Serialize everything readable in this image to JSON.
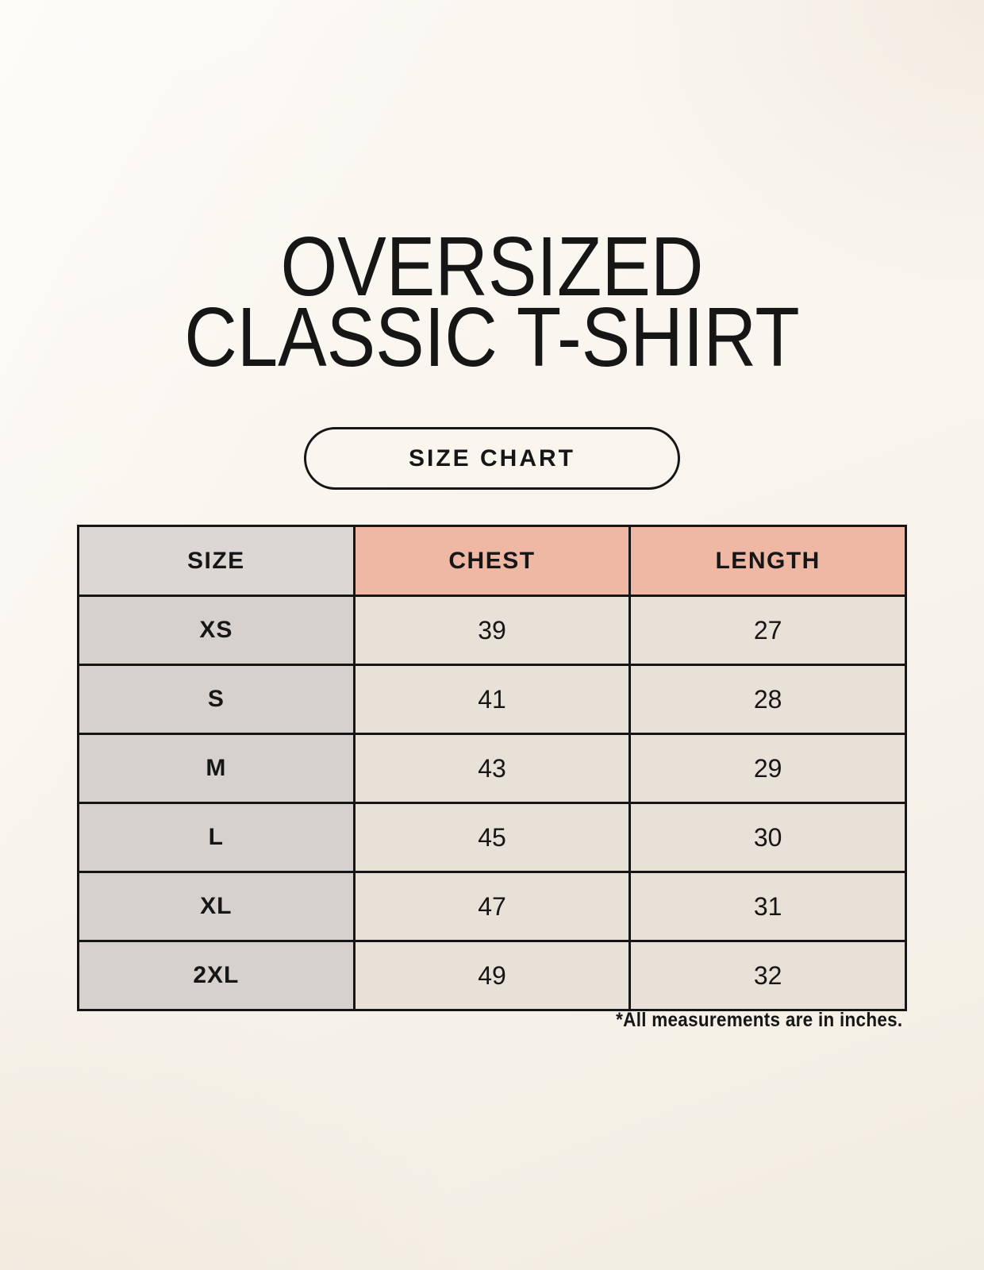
{
  "title": {
    "lines": [
      "OVERSIZED",
      "CLASSIC T-SHIRT"
    ],
    "full": "OVERSIZED CLASSIC T-SHIRT"
  },
  "size_chart_button": {
    "label": "SIZE CHART"
  },
  "table": {
    "columns": [
      "SIZE",
      "CHEST",
      "LENGTH"
    ],
    "rows": [
      {
        "size": "XS",
        "chest": "39",
        "length": "27"
      },
      {
        "size": "S",
        "chest": "41",
        "length": "28"
      },
      {
        "size": "M",
        "chest": "43",
        "length": "29"
      },
      {
        "size": "L",
        "chest": "45",
        "length": "30"
      },
      {
        "size": "XL",
        "chest": "47",
        "length": "31"
      },
      {
        "size": "2XL",
        "chest": "49",
        "length": "32"
      }
    ]
  },
  "footnote": "*All measurements are in inches.",
  "colors": {
    "page_background": "#f9f5ee",
    "header_accent_pink": "#eeb8a5",
    "header_gray": "#dcd7d2",
    "size_column_gray": "#d7d1cd",
    "data_cell_beige": "#e8e1d7",
    "border": "#161616",
    "text": "#161616"
  },
  "chart_data": {
    "type": "table",
    "title": "OVERSIZED CLASSIC T-SHIRT",
    "subtitle": "SIZE CHART",
    "columns": [
      "SIZE",
      "CHEST",
      "LENGTH"
    ],
    "rows": [
      [
        "XS",
        39,
        27
      ],
      [
        "S",
        41,
        28
      ],
      [
        "M",
        43,
        29
      ],
      [
        "L",
        45,
        30
      ],
      [
        "XL",
        47,
        31
      ],
      [
        "2XL",
        49,
        32
      ]
    ],
    "units": "inches",
    "footnote": "*All measurements are in inches."
  }
}
